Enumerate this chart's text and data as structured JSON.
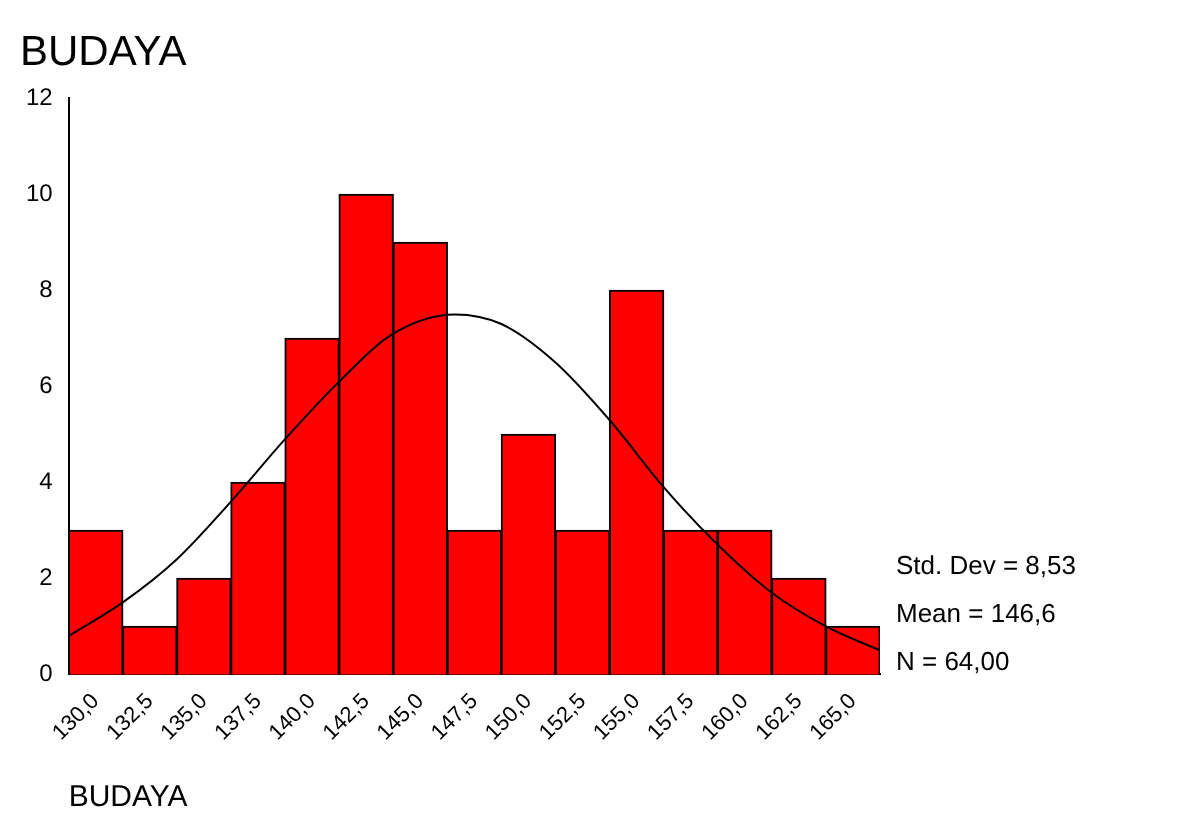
{
  "chart_data": {
    "type": "histogram",
    "title": "BUDAYA",
    "xlabel": "BUDAYA",
    "bins": [
      128.75,
      131.25,
      133.75,
      136.25,
      138.75,
      141.25,
      143.75,
      146.25,
      148.75,
      151.25,
      153.75,
      156.25,
      158.75,
      161.25,
      163.75,
      166.25
    ],
    "values": [
      3,
      1,
      2,
      4,
      7,
      10,
      9,
      3,
      5,
      3,
      8,
      3,
      3,
      2,
      1
    ],
    "color": "#ff0000",
    "series": [
      {
        "type": "line",
        "color": "#000000",
        "x": [
          128.75,
          131.25,
          133.75,
          136.25,
          138.75,
          141.25,
          143.75,
          146.6,
          148.75,
          151.25,
          153.75,
          156.25,
          158.75,
          161.25,
          163.75,
          166.25
        ],
        "values": [
          0.8,
          1.5,
          2.4,
          3.6,
          4.9,
          6.1,
          7.1,
          7.5,
          7.3,
          6.5,
          5.3,
          3.9,
          2.7,
          1.7,
          1.0,
          0.5
        ]
      }
    ],
    "marker": "none",
    "xlim": [
      128.75,
      166.25
    ],
    "xticks": [
      {
        "value": 130,
        "label": "130,0"
      },
      {
        "value": 132.5,
        "label": "132,5"
      },
      {
        "value": 135,
        "label": "135,0"
      },
      {
        "value": 137.5,
        "label": "137,5"
      },
      {
        "value": 140,
        "label": "140,0"
      },
      {
        "value": 142.5,
        "label": "142,5"
      },
      {
        "value": 145,
        "label": "145,0"
      },
      {
        "value": 147.5,
        "label": "147,5"
      },
      {
        "value": 150,
        "label": "150,0"
      },
      {
        "value": 152.5,
        "label": "152,5"
      },
      {
        "value": 155,
        "label": "155,0"
      },
      {
        "value": 157.5,
        "label": "157,5"
      },
      {
        "value": 160,
        "label": "160,0"
      },
      {
        "value": 162.5,
        "label": "162,5"
      },
      {
        "value": 165,
        "label": "165,0"
      }
    ],
    "ylim": [
      0,
      12
    ],
    "yticks": [
      0,
      2,
      4,
      6,
      8,
      10,
      12
    ],
    "grid": false,
    "legend": false,
    "annotations": [
      "Std. Dev = 8,53",
      "Mean = 146,6",
      "N = 64,00"
    ]
  }
}
